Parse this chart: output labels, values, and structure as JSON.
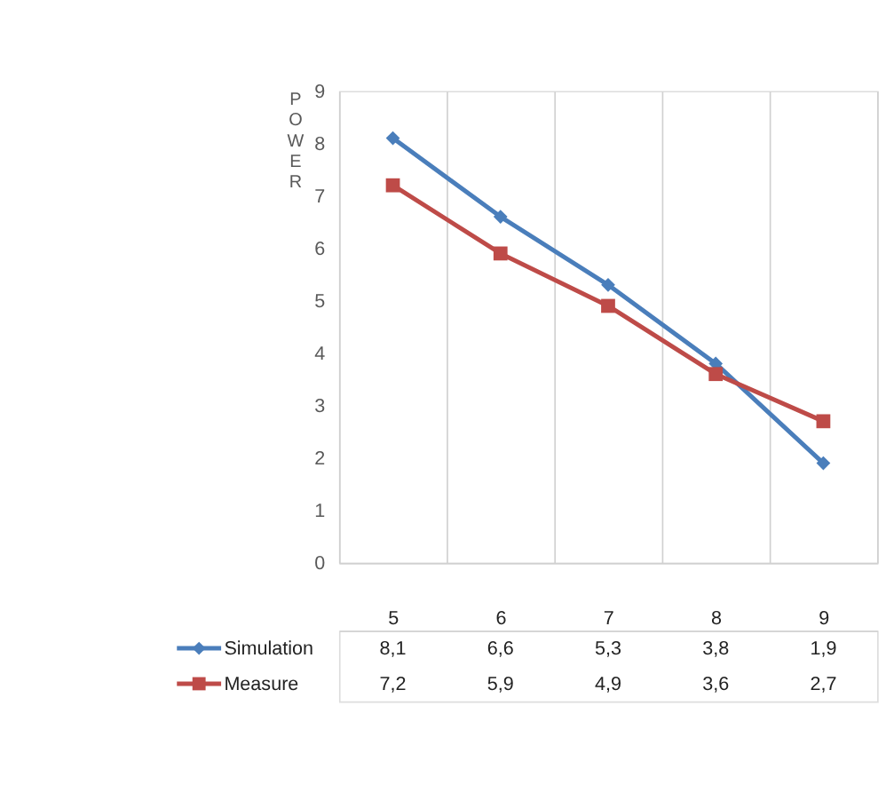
{
  "chart_data": {
    "type": "line",
    "ylabel": "POWER",
    "categories": [
      "5",
      "6",
      "7",
      "8",
      "9"
    ],
    "series": [
      {
        "name": "Simulation",
        "color": "#4a7ebb",
        "marker": "diamond",
        "values": [
          8.1,
          6.6,
          5.3,
          3.8,
          1.9
        ],
        "value_labels": [
          "8,1",
          "6,6",
          "5,3",
          "3,8",
          "1,9"
        ]
      },
      {
        "name": "Measure",
        "color": "#be4b48",
        "marker": "square",
        "values": [
          7.2,
          5.9,
          4.9,
          3.6,
          2.7
        ],
        "value_labels": [
          "7,2",
          "5,9",
          "4,9",
          "3,6",
          "2,7"
        ]
      }
    ],
    "ylim": [
      0,
      9
    ],
    "yticks": [
      0,
      1,
      2,
      3,
      4,
      5,
      6,
      7,
      8,
      9
    ],
    "grid": "x",
    "legend": "bottom",
    "line_style": "solid"
  }
}
